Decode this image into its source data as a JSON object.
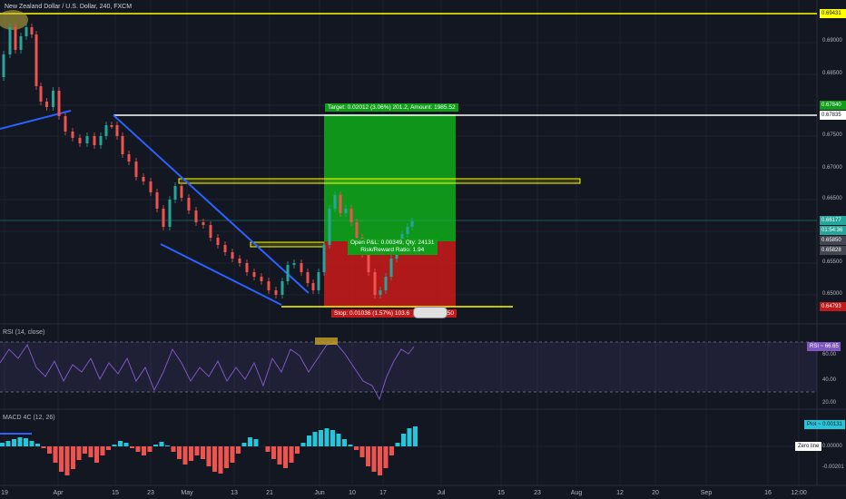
{
  "header": {
    "title": "New Zealand Dollar / U.S. Dollar, 240, FXCM"
  },
  "price_axis": {
    "labels": [
      "0.69000",
      "0.68500",
      "0.67500",
      "0.67000",
      "0.66500",
      "0.65500",
      "0.65000"
    ]
  },
  "price_tags": {
    "top_line": "0.69431",
    "target": "0.67840",
    "resistance": "0.67835",
    "last": "0.66177",
    "countdown": "01:54:36",
    "entry_a": "0.65850",
    "entry_b": "0.65828",
    "stop": "0.64793"
  },
  "position": {
    "target_label": "Target: 0.02012 (3.06%) 201.2, Amount: 1985.52",
    "open_pnl_label": "Open P&L: 0.00349, Qty: 24131",
    "risk_reward_label": "Risk/Reward Ratio: 1.94",
    "stop_label": "Stop: 0.01036 (1.57%) 103.6",
    "stop_label_tail": "50"
  },
  "rsi": {
    "label": "RSI (14, close)",
    "value_tag": "RSI ~ 66.65",
    "axis": [
      "60.00",
      "40.00",
      "20.00"
    ]
  },
  "macd": {
    "label": "MACD 4C (12, 26)",
    "plot_tag": "Plot ~ 0.00131",
    "zero_tag": "Zero line",
    "zero_value": "0.00000",
    "neg_value": "-0.00201"
  },
  "date_axis": {
    "labels": [
      "19",
      "Apr",
      "15",
      "23",
      "May",
      "13",
      "21",
      "Jun",
      "10",
      "17",
      "Jul",
      "15",
      "23",
      "Aug",
      "12",
      "20",
      "Sep",
      "16",
      "12:00"
    ]
  },
  "colors": {
    "background": "#131722",
    "profit_zone": "#0f9d1a",
    "loss_zone": "#c21a1a",
    "trend_line": "#2962ff",
    "horizontal_line": "#ffff00",
    "rsi_line": "#7e57c2",
    "macd_up": "#26c6da",
    "macd_down": "#ef5350"
  }
}
